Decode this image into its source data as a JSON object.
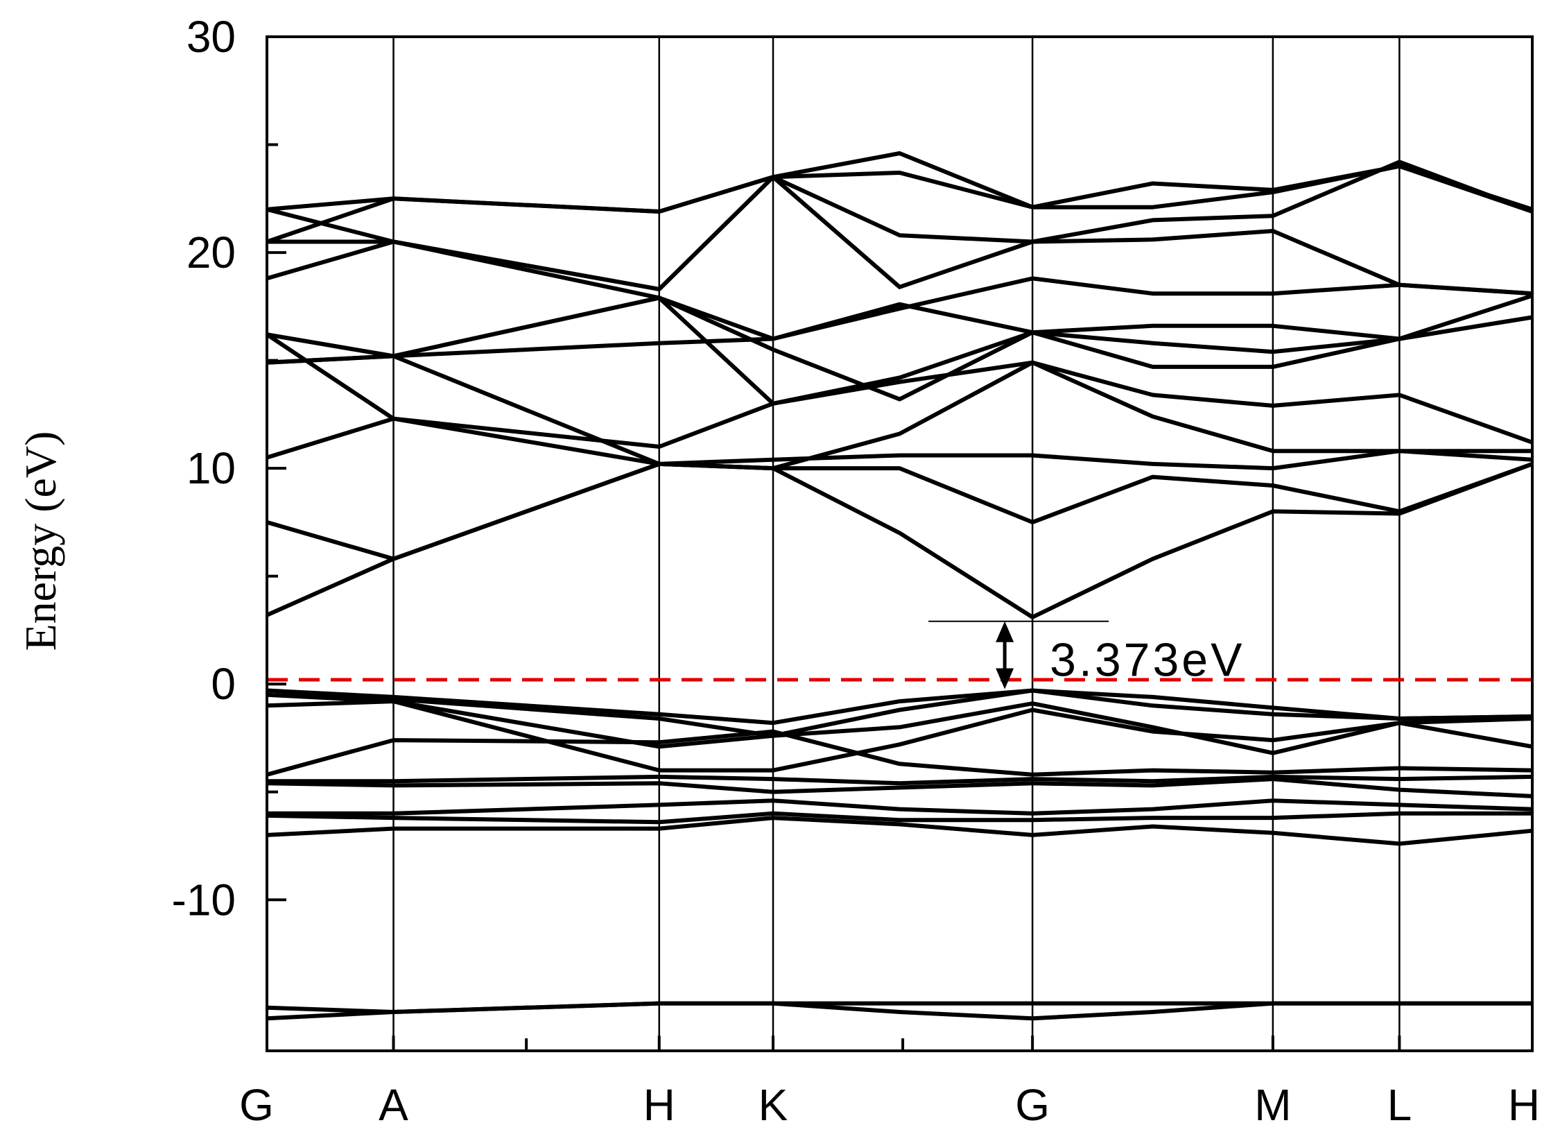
{
  "chart_data": {
    "type": "line",
    "title": "",
    "xlabel": "",
    "ylabel": "Energy (eV)",
    "ylim": [
      -17,
      30
    ],
    "y_ticks": [
      -10,
      0,
      10,
      20,
      30
    ],
    "k_path": [
      {
        "label": "G",
        "x": 0.0
      },
      {
        "label": "A",
        "x": 1.0
      },
      {
        "label": "H",
        "x": 3.1
      },
      {
        "label": "K",
        "x": 4.0
      },
      {
        "label": "G",
        "x": 6.05
      },
      {
        "label": "M",
        "x": 7.95
      },
      {
        "label": "L",
        "x": 8.95
      },
      {
        "label": "H",
        "x": 10.0
      }
    ],
    "xlim": [
      0,
      10
    ],
    "fermi_level": 0.2,
    "fermi_color": "#e00000",
    "band_color": "#000000",
    "band_gap": {
      "value_label": "3.373eV",
      "vbm": -0.3,
      "cbm": 3.1,
      "x": 6.05
    },
    "series": [
      {
        "x": [
          0,
          1,
          3.1,
          4,
          5,
          6.05,
          7,
          7.95,
          8.95,
          10
        ],
        "values": [
          -15.5,
          -15.2,
          -14.8,
          -14.8,
          -15.2,
          -15.5,
          -15.2,
          -14.8,
          -14.8,
          -14.8
        ]
      },
      {
        "x": [
          0,
          1,
          3.1,
          4,
          5,
          6.05,
          7,
          7.95,
          8.95,
          10
        ],
        "values": [
          -15.0,
          -15.2,
          -14.8,
          -14.8,
          -14.8,
          -14.8,
          -14.8,
          -14.8,
          -14.8,
          -14.8
        ]
      },
      {
        "x": [
          0,
          1,
          3.1,
          4,
          5,
          6.05,
          7,
          7.95,
          8.95,
          10
        ],
        "values": [
          -7.0,
          -6.7,
          -6.7,
          -6.2,
          -6.5,
          -7.0,
          -6.6,
          -6.9,
          -7.4,
          -6.8
        ]
      },
      {
        "x": [
          0,
          1,
          3.1,
          4,
          5,
          6.05,
          7,
          7.95,
          8.95,
          10
        ],
        "values": [
          -6.1,
          -6.2,
          -6.4,
          -6.0,
          -6.3,
          -6.3,
          -6.2,
          -6.2,
          -6.0,
          -6.0
        ]
      },
      {
        "x": [
          0,
          1,
          3.1,
          4,
          5,
          6.05,
          7,
          7.95,
          8.95,
          10
        ],
        "values": [
          -6.0,
          -6.0,
          -5.6,
          -5.4,
          -5.8,
          -6.0,
          -5.8,
          -5.4,
          -5.6,
          -5.8
        ]
      },
      {
        "x": [
          0,
          1,
          3.1,
          4,
          5,
          6.05,
          7,
          7.95,
          8.95,
          10
        ],
        "values": [
          -4.6,
          -4.7,
          -4.6,
          -5.0,
          -4.8,
          -4.6,
          -4.7,
          -4.4,
          -4.9,
          -5.2
        ]
      },
      {
        "x": [
          0,
          1,
          3.1,
          4,
          5,
          6.05,
          7,
          7.95,
          8.95,
          10
        ],
        "values": [
          -4.5,
          -4.5,
          -4.3,
          -4.4,
          -4.6,
          -4.4,
          -4.5,
          -4.3,
          -4.4,
          -4.3
        ]
      },
      {
        "x": [
          0,
          1,
          3.1,
          4,
          5,
          6.05,
          7,
          7.95,
          8.95,
          10
        ],
        "values": [
          -4.2,
          -2.6,
          -2.7,
          -2.2,
          -3.7,
          -4.2,
          -4.0,
          -4.1,
          -3.9,
          -4.0
        ]
      },
      {
        "x": [
          0,
          1,
          3.1,
          4,
          5,
          6.05,
          7,
          7.95,
          8.95,
          10
        ],
        "values": [
          -0.5,
          -0.8,
          -2.9,
          -2.4,
          -2.0,
          -0.9,
          -2.0,
          -3.2,
          -1.8,
          -2.9
        ]
      },
      {
        "x": [
          0,
          1,
          3.1,
          4,
          5,
          6.05,
          7,
          7.95,
          8.95,
          10
        ],
        "values": [
          -1.0,
          -0.8,
          -4.0,
          -4.0,
          -2.8,
          -1.2,
          -2.2,
          -2.6,
          -1.8,
          -1.6
        ]
      },
      {
        "x": [
          0,
          1,
          3.1,
          4,
          5,
          6.05,
          7,
          7.95,
          8.95,
          10
        ],
        "values": [
          -0.3,
          -0.7,
          -1.6,
          -2.4,
          -1.2,
          -0.3,
          -1.0,
          -1.4,
          -1.6,
          -1.5
        ]
      },
      {
        "x": [
          0,
          1,
          3.1,
          4,
          5,
          6.05,
          7,
          7.95,
          8.95,
          10
        ],
        "values": [
          -0.3,
          -0.6,
          -1.4,
          -1.8,
          -0.8,
          -0.3,
          -0.6,
          -1.1,
          -1.6,
          -1.5
        ]
      },
      {
        "x": [
          0,
          1,
          3.1,
          4,
          5,
          6.05,
          7,
          7.95,
          8.95,
          10
        ],
        "values": [
          3.2,
          5.8,
          10.2,
          10.0,
          7.0,
          3.1,
          5.8,
          8.0,
          7.9,
          10.2
        ]
      },
      {
        "x": [
          0,
          1,
          3.1,
          4,
          5,
          6.05,
          7,
          7.95,
          8.95,
          10
        ],
        "values": [
          7.5,
          5.8,
          10.2,
          10.0,
          10.0,
          7.5,
          9.6,
          9.2,
          8.0,
          10.2
        ]
      },
      {
        "x": [
          0,
          1,
          3.1,
          4,
          5,
          6.05,
          7,
          7.95,
          8.95,
          10
        ],
        "values": [
          10.5,
          12.3,
          10.2,
          10.4,
          10.6,
          10.6,
          10.2,
          10.0,
          10.8,
          10.4
        ]
      },
      {
        "x": [
          0,
          1,
          3.1,
          4,
          5,
          6.05,
          7,
          7.95,
          8.95,
          10
        ],
        "values": [
          16.2,
          12.3,
          11.0,
          13.0,
          14.0,
          14.9,
          12.4,
          10.8,
          10.8,
          10.8
        ]
      },
      {
        "x": [
          0,
          1,
          3.1,
          4,
          5,
          6.05,
          7,
          7.95,
          8.95,
          10
        ],
        "values": [
          16.2,
          15.2,
          10.2,
          10.0,
          11.6,
          14.9,
          13.4,
          12.9,
          13.4,
          11.2
        ]
      },
      {
        "x": [
          0,
          1,
          3.1,
          4,
          5,
          6.05,
          7,
          7.95,
          8.95,
          10
        ],
        "values": [
          14.9,
          15.2,
          17.9,
          13.0,
          14.2,
          16.3,
          14.7,
          14.7,
          16.0,
          18.0
        ]
      },
      {
        "x": [
          0,
          1,
          3.1,
          4,
          5,
          6.05,
          7,
          7.95,
          8.95,
          10
        ],
        "values": [
          14.9,
          15.2,
          15.8,
          16.0,
          17.6,
          16.3,
          15.8,
          15.4,
          16.0,
          17.0
        ]
      },
      {
        "x": [
          0,
          1,
          3.1,
          4,
          5,
          6.05,
          7,
          7.95,
          8.95,
          10
        ],
        "values": [
          16.2,
          15.2,
          17.9,
          15.5,
          13.2,
          16.3,
          16.6,
          16.6,
          16.0,
          17.0
        ]
      },
      {
        "x": [
          0,
          1,
          3.1,
          4,
          5,
          6.05,
          7,
          7.95,
          8.95,
          10
        ],
        "values": [
          18.8,
          20.5,
          17.9,
          16.0,
          17.4,
          18.8,
          18.1,
          18.1,
          18.5,
          18.1
        ]
      },
      {
        "x": [
          0,
          1,
          3.1,
          4,
          5,
          6.05,
          7,
          7.95,
          8.95,
          10
        ],
        "values": [
          20.5,
          22.5,
          21.9,
          23.5,
          20.8,
          20.5,
          20.6,
          21.0,
          18.5,
          18.1
        ]
      },
      {
        "x": [
          0,
          1,
          3.1,
          4,
          5,
          6.05,
          7,
          7.95,
          8.95,
          10
        ],
        "values": [
          20.5,
          20.5,
          18.3,
          23.5,
          18.4,
          20.5,
          21.5,
          21.7,
          24.2,
          21.9
        ]
      },
      {
        "x": [
          0,
          1,
          3.1,
          4,
          5,
          6.05,
          7,
          7.95,
          8.95,
          10
        ],
        "values": [
          22.0,
          22.5,
          21.9,
          23.5,
          23.7,
          22.1,
          22.1,
          22.8,
          24.0,
          21.9
        ]
      },
      {
        "x": [
          0,
          1,
          3.1,
          4,
          5,
          6.05,
          7,
          7.95,
          8.95,
          10
        ],
        "values": [
          22.0,
          20.5,
          18.3,
          23.5,
          24.6,
          22.1,
          23.2,
          22.9,
          24.0,
          22.0
        ]
      }
    ]
  }
}
